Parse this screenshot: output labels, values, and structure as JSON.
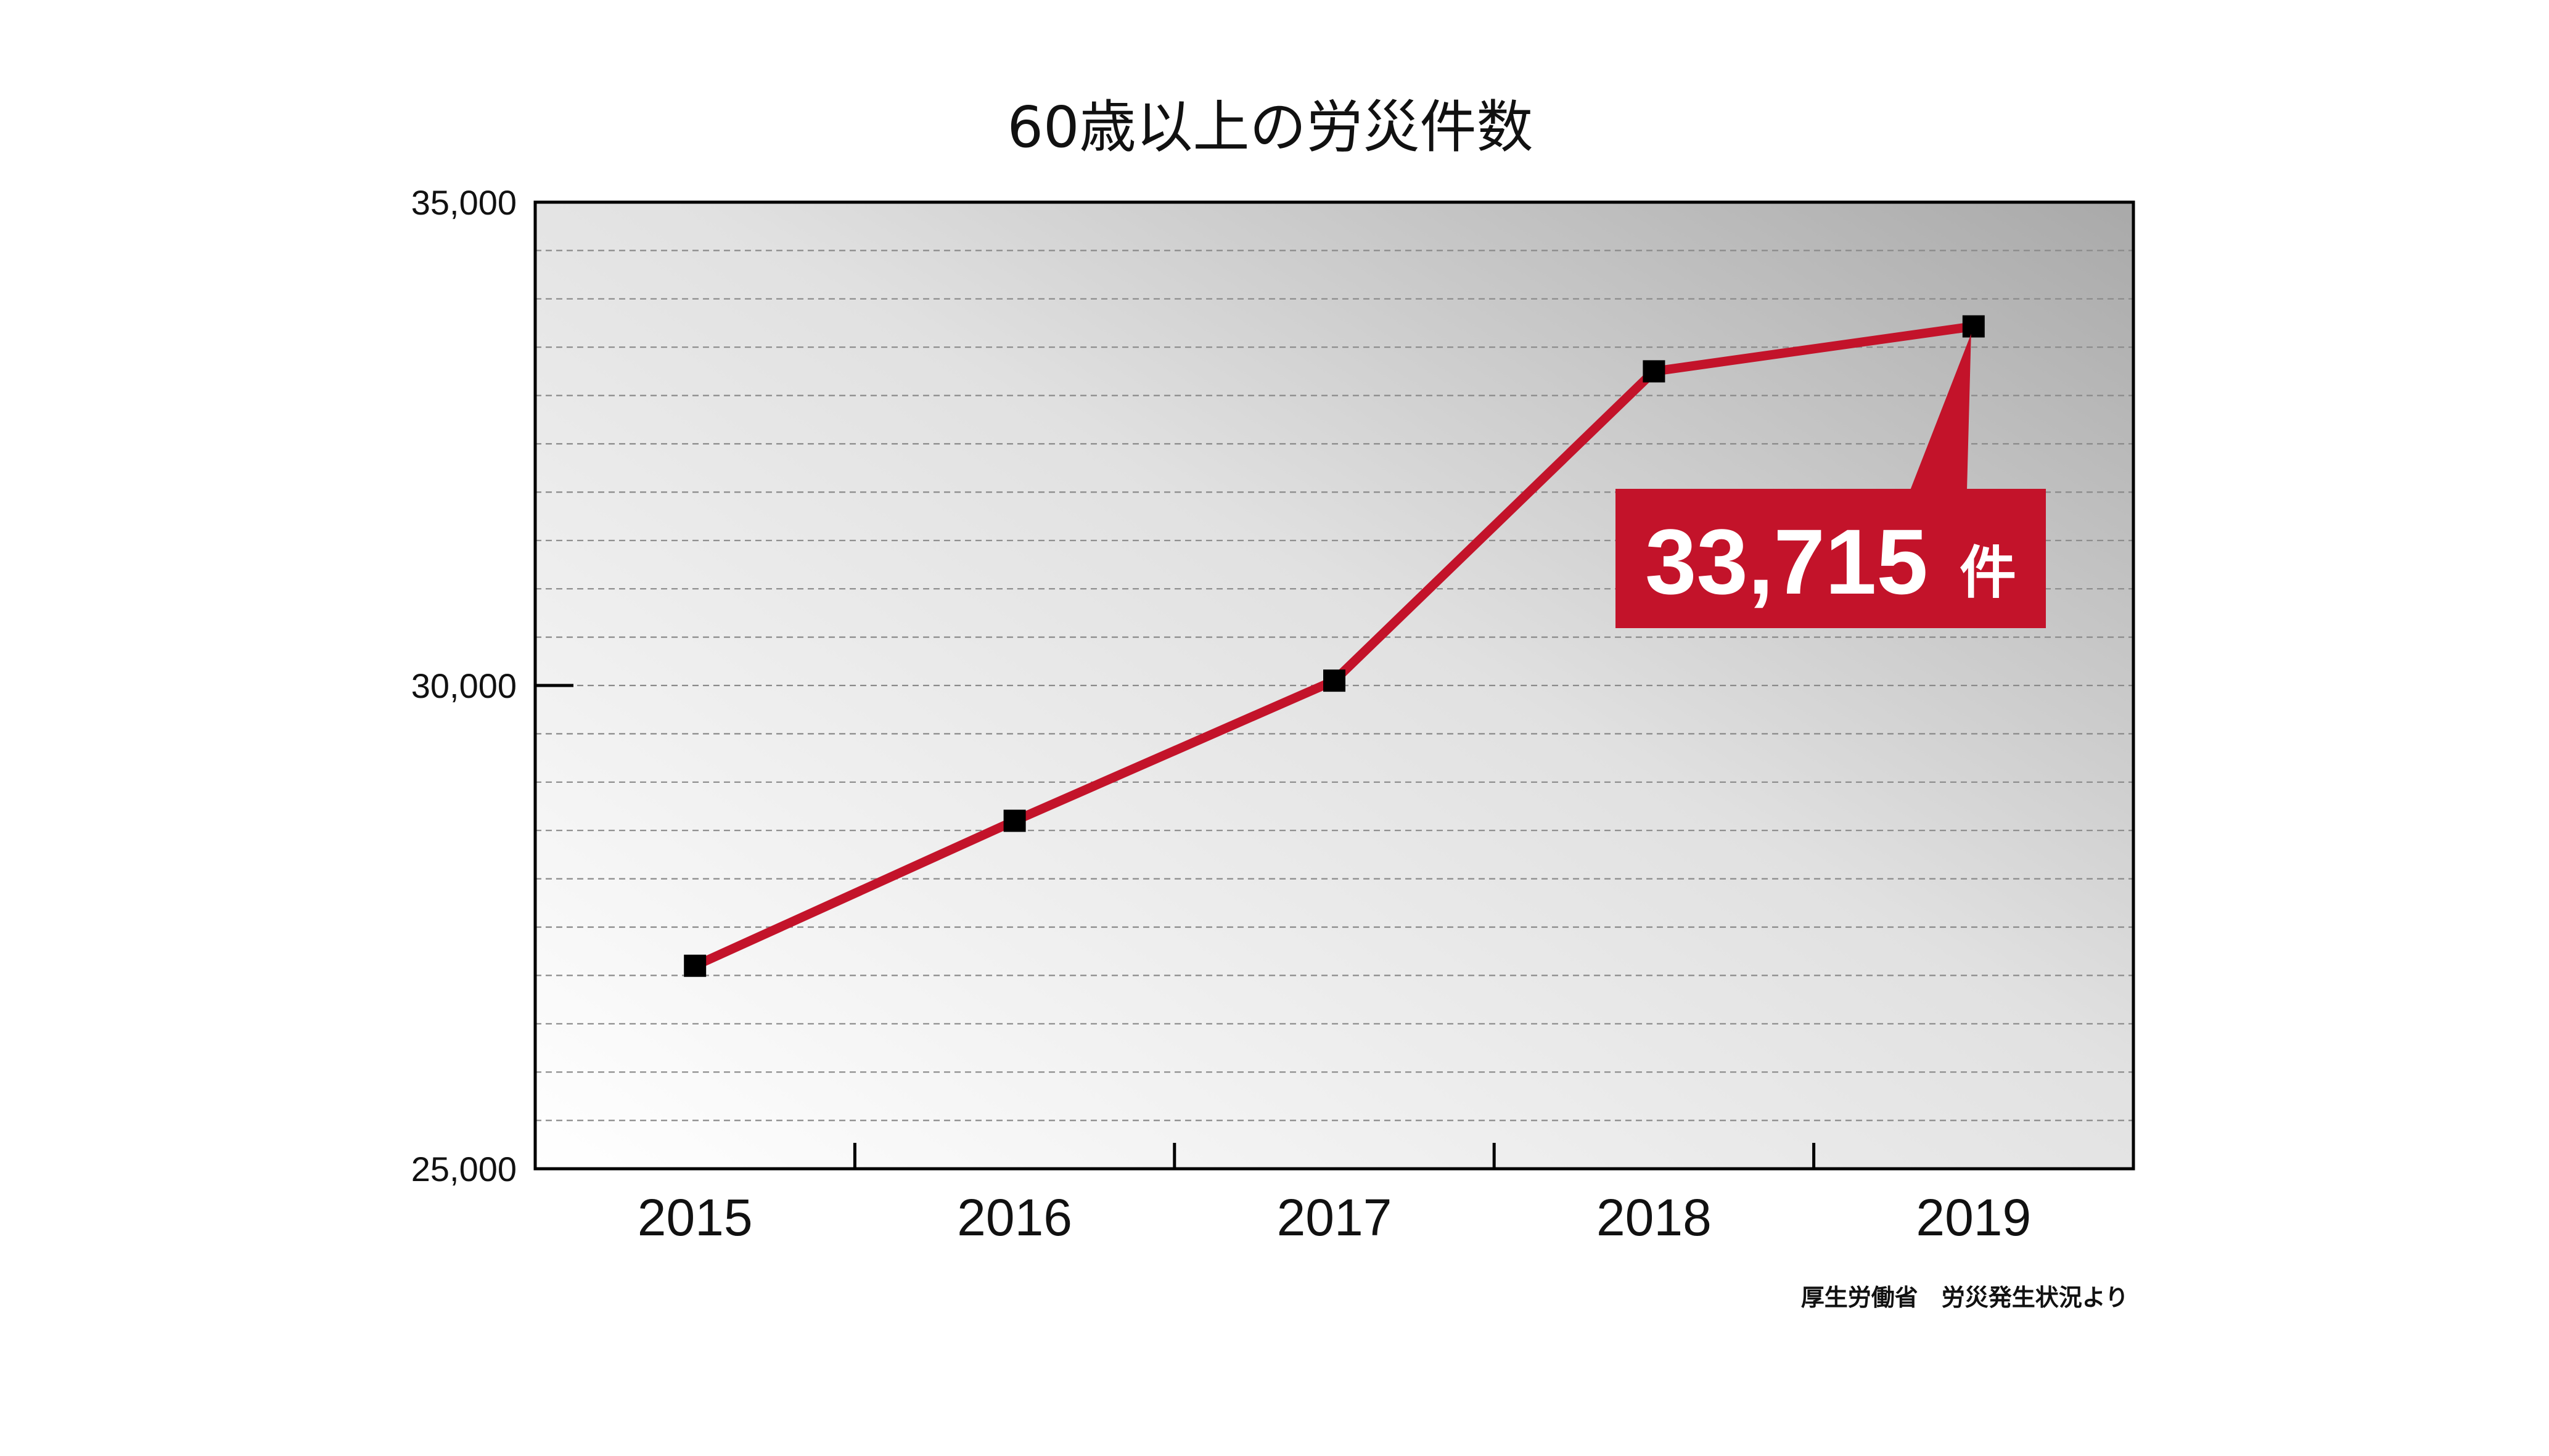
{
  "chart_data": {
    "type": "line",
    "title": "60歳以上の労災件数",
    "xlabel": "",
    "ylabel": "",
    "categories": [
      "2015",
      "2016",
      "2017",
      "2018",
      "2019"
    ],
    "series": [
      {
        "values": [
          27100,
          28600,
          30050,
          33250,
          33715
        ]
      }
    ],
    "ylim": [
      25000,
      35000
    ],
    "yticks": [
      25000,
      30000,
      35000
    ],
    "ytick_labels": [
      "25,000",
      "30,000",
      "35,000"
    ],
    "grid": true,
    "annotation": {
      "value": "33,715",
      "unit": "件",
      "target_category": "2019"
    },
    "colors": {
      "line": "#c3132a",
      "marker": "#000000",
      "callout_bg": "#c3132a"
    }
  },
  "source": "厚生労働省　労災発生状況より"
}
